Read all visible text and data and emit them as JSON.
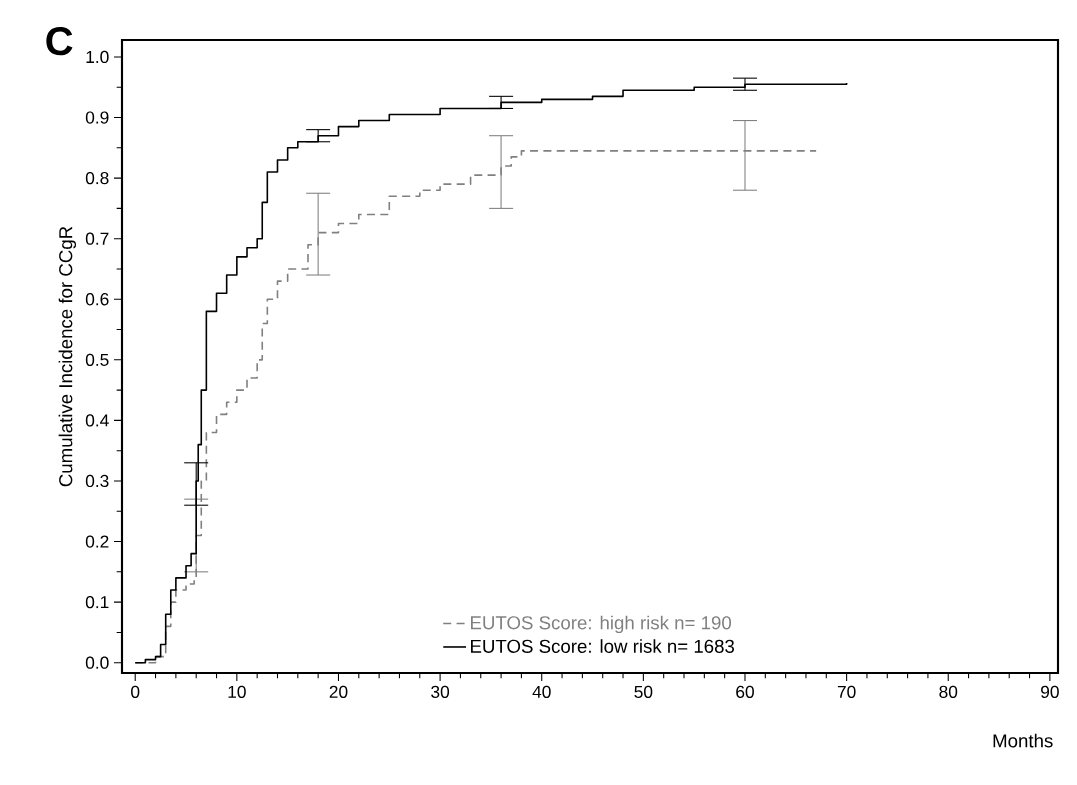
{
  "chart_data": {
    "type": "step",
    "xlabel": "Months",
    "ylabel": "Cumulative Incidence for CCgR",
    "annotations": [
      "C"
    ],
    "xlim": [
      -1.3,
      90.8
    ],
    "ylim": [
      -0.017,
      1.028
    ],
    "xticks": [
      0,
      10,
      20,
      30,
      40,
      50,
      60,
      70,
      80,
      90
    ],
    "yticks": [
      {
        "value": 0,
        "label": "0.0"
      },
      0.1,
      0.2,
      0.3,
      0.4,
      0.5,
      0.6,
      0.7,
      0.8,
      0.9,
      {
        "value": 1,
        "label": "1.0"
      }
    ],
    "grid": false,
    "legend": "bottom",
    "marker": "none",
    "series": [
      {
        "name": "EUTOS Score: high risk n= 190",
        "color": "#808080",
        "line_style": "dashed",
        "x": [
          0,
          2,
          3,
          3.5,
          4,
          5,
          5.8,
          6,
          6.5,
          7,
          8,
          9,
          10,
          11,
          12,
          12.5,
          13,
          14,
          15,
          17,
          18,
          20,
          22,
          25,
          28,
          30,
          33,
          36,
          37,
          38,
          60,
          67
        ],
        "values": [
          0,
          0.01,
          0.06,
          0.1,
          0.12,
          0.13,
          0.14,
          0.21,
          0.3,
          0.38,
          0.41,
          0.43,
          0.45,
          0.47,
          0.5,
          0.56,
          0.6,
          0.63,
          0.65,
          0.69,
          0.71,
          0.725,
          0.74,
          0.77,
          0.78,
          0.79,
          0.805,
          0.82,
          0.835,
          0.845,
          0.845,
          0.845
        ],
        "errors": [
          null,
          null,
          null,
          null,
          null,
          null,
          null,
          [
            0.15,
            0.27
          ],
          null,
          null,
          null,
          null,
          null,
          null,
          null,
          null,
          null,
          null,
          null,
          null,
          [
            0.64,
            0.775
          ],
          null,
          null,
          null,
          null,
          null,
          null,
          [
            0.75,
            0.87
          ],
          null,
          null,
          [
            0.78,
            0.895
          ],
          null
        ]
      },
      {
        "name": "EUTOS Score: low risk   n= 1683",
        "color": "#000000",
        "line_style": "solid",
        "x": [
          0,
          1,
          2,
          2.5,
          3,
          3.5,
          4,
          5,
          5.5,
          6,
          6.2,
          6.5,
          7,
          8,
          9,
          10,
          11,
          12,
          12.5,
          13,
          14,
          15,
          16,
          18,
          20,
          22,
          25,
          30,
          36,
          40,
          45,
          48,
          55,
          60,
          70
        ],
        "values": [
          0,
          0.005,
          0.01,
          0.03,
          0.08,
          0.12,
          0.14,
          0.16,
          0.18,
          0.3,
          0.36,
          0.45,
          0.58,
          0.61,
          0.64,
          0.67,
          0.685,
          0.7,
          0.76,
          0.81,
          0.83,
          0.85,
          0.86,
          0.87,
          0.885,
          0.895,
          0.905,
          0.915,
          0.925,
          0.93,
          0.935,
          0.945,
          0.95,
          0.955,
          0.957
        ],
        "errors": [
          null,
          null,
          null,
          null,
          null,
          null,
          null,
          null,
          null,
          [
            0.26,
            0.33
          ],
          null,
          null,
          null,
          null,
          null,
          null,
          null,
          null,
          null,
          null,
          null,
          null,
          null,
          [
            0.86,
            0.88
          ],
          null,
          null,
          null,
          null,
          [
            0.915,
            0.935
          ],
          null,
          null,
          null,
          null,
          [
            0.945,
            0.965
          ],
          null
        ]
      }
    ]
  }
}
